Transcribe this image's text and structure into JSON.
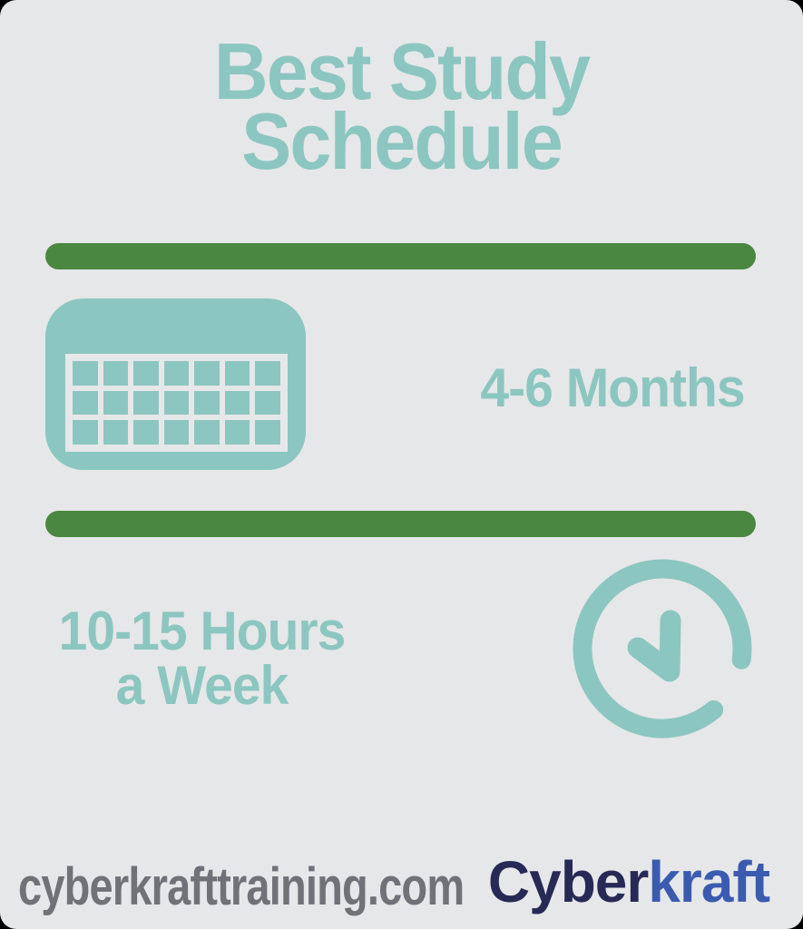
{
  "title": {
    "line1": "Best Study",
    "line2": "Schedule"
  },
  "schedule": {
    "duration": "4-6 Months",
    "hours_line1": "10-15 Hours",
    "hours_line2": "a Week"
  },
  "icons": {
    "calendar": "calendar-icon",
    "clock": "clock-icon"
  },
  "footer": {
    "website": "cyberkrafttraining.com",
    "brand_part1": "Cyber",
    "brand_part2": "kraft"
  },
  "colors": {
    "background": "#e6e7e9",
    "teal": "#8cc6c0",
    "green": "#4a8740",
    "footer_gray": "#707277",
    "brand_navy": "#262a55",
    "brand_blue": "#3b5bb1"
  }
}
